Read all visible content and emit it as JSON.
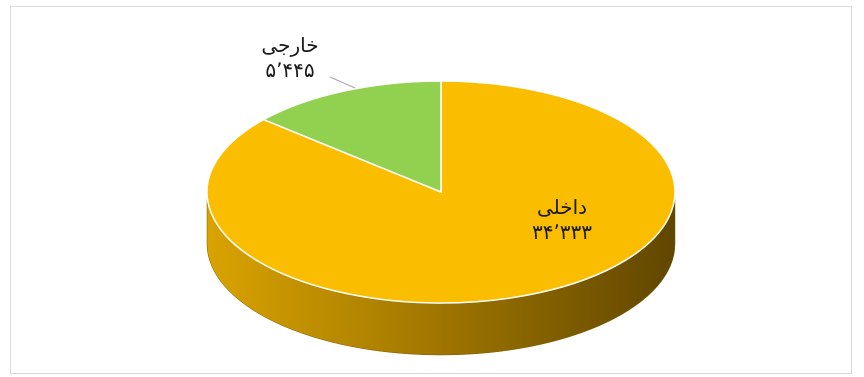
{
  "chart_data": {
    "type": "pie",
    "style": "3d",
    "slices": [
      {
        "name": "داخلی",
        "value": 34333,
        "value_label": "۳۴٬۳۳۳",
        "color": "#FABD00"
      },
      {
        "name": "خارجی",
        "value": 5445,
        "value_label": "۵٬۴۴۵",
        "color": "#92D050"
      }
    ],
    "legend": "none"
  }
}
